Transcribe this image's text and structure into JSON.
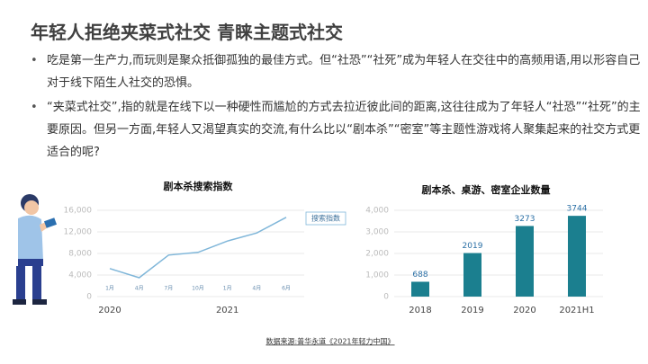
{
  "title": "年轻人拒绝夹菜式社交 青睐主题式社交",
  "bullets": [
    "吃是第一生产力,而玩则是聚众抵御孤独的最佳方式。但“社恐”“社死”成为年轻人在交往中的高频用语,用以形容自己对于线下陌生人社交的恐惧。",
    "“夹菜式社交”,指的就是在线下以一种硬性而尴尬的方式去拉近彼此间的距离,这往往成为了年轻人“社恐”“社死”的主要原因。但另一方面,年轻人又渴望真实的交流,有什么比以“剧本杀”“密室”等主题性游戏将人聚集起来的社交方式更适合的呢?"
  ],
  "source": "数据来源:普华永道《2021年轻力中国》",
  "chart_data": [
    {
      "type": "line",
      "title": "剧本杀搜索指数",
      "categories": [
        "1月",
        "4月",
        "7月",
        "10月",
        "1月",
        "4月",
        "6月"
      ],
      "year_labels": [
        "2020",
        "2021"
      ],
      "series": [
        {
          "name": "搜索指数",
          "color": "#7fb6d9",
          "values": [
            5200,
            3500,
            7700,
            8200,
            10300,
            11800,
            14700
          ]
        }
      ],
      "ylim": [
        0,
        16000
      ],
      "yticks": [
        0,
        {
          "value": 4000,
          "label": "4,000"
        },
        {
          "value": 8000,
          "label": "8,000"
        },
        {
          "value": 12000,
          "label": "12,000"
        },
        {
          "value": 16000,
          "label": "16,000"
        }
      ],
      "grid": true
    },
    {
      "type": "bar",
      "title": "剧本杀、桌游、密室企业数量",
      "categories": [
        "2018",
        "2019",
        "2020",
        "2021H1"
      ],
      "values": [
        688,
        2019,
        3273,
        3744
      ],
      "color": "#1b7f8f",
      "ylim": [
        0,
        4000
      ],
      "yticks": [
        0,
        {
          "value": 1000,
          "label": "1,000"
        },
        {
          "value": 2000,
          "label": "2,000"
        },
        {
          "value": 3000,
          "label": "3,000"
        },
        {
          "value": 4000,
          "label": "4,000"
        }
      ],
      "grid": true
    }
  ]
}
